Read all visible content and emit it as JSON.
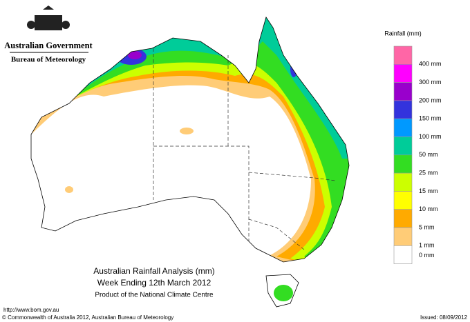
{
  "header": {
    "government": "Australian Government",
    "agency": "Bureau of Meteorology"
  },
  "legend": {
    "title": "Rainfall (mm)",
    "items": [
      {
        "label": "400 mm",
        "color": "#ff66a6"
      },
      {
        "label": "300 mm",
        "color": "#ff00ff"
      },
      {
        "label": "200 mm",
        "color": "#9900cc"
      },
      {
        "label": "150 mm",
        "color": "#3333dd"
      },
      {
        "label": "100 mm",
        "color": "#0099ff"
      },
      {
        "label": "50 mm",
        "color": "#00cc99"
      },
      {
        "label": "25 mm",
        "color": "#33dd22"
      },
      {
        "label": "15 mm",
        "color": "#ccff00"
      },
      {
        "label": "10 mm",
        "color": "#ffff00"
      },
      {
        "label": "5 mm",
        "color": "#ffaa00"
      },
      {
        "label": "1 mm",
        "color": "#ffcc77"
      },
      {
        "label": "0 mm",
        "color": "#ffffff"
      }
    ]
  },
  "caption": {
    "title": "Australian Rainfall Analysis (mm)",
    "period": "Week Ending 12th March 2012",
    "product": "Product of the National Climate Centre"
  },
  "footer": {
    "url": "http://www.bom.gov.au",
    "copyright": "© Commonwealth of Australia 2012, Australian Bureau of Meteorology",
    "issued": "Issued: 08/09/2012"
  }
}
